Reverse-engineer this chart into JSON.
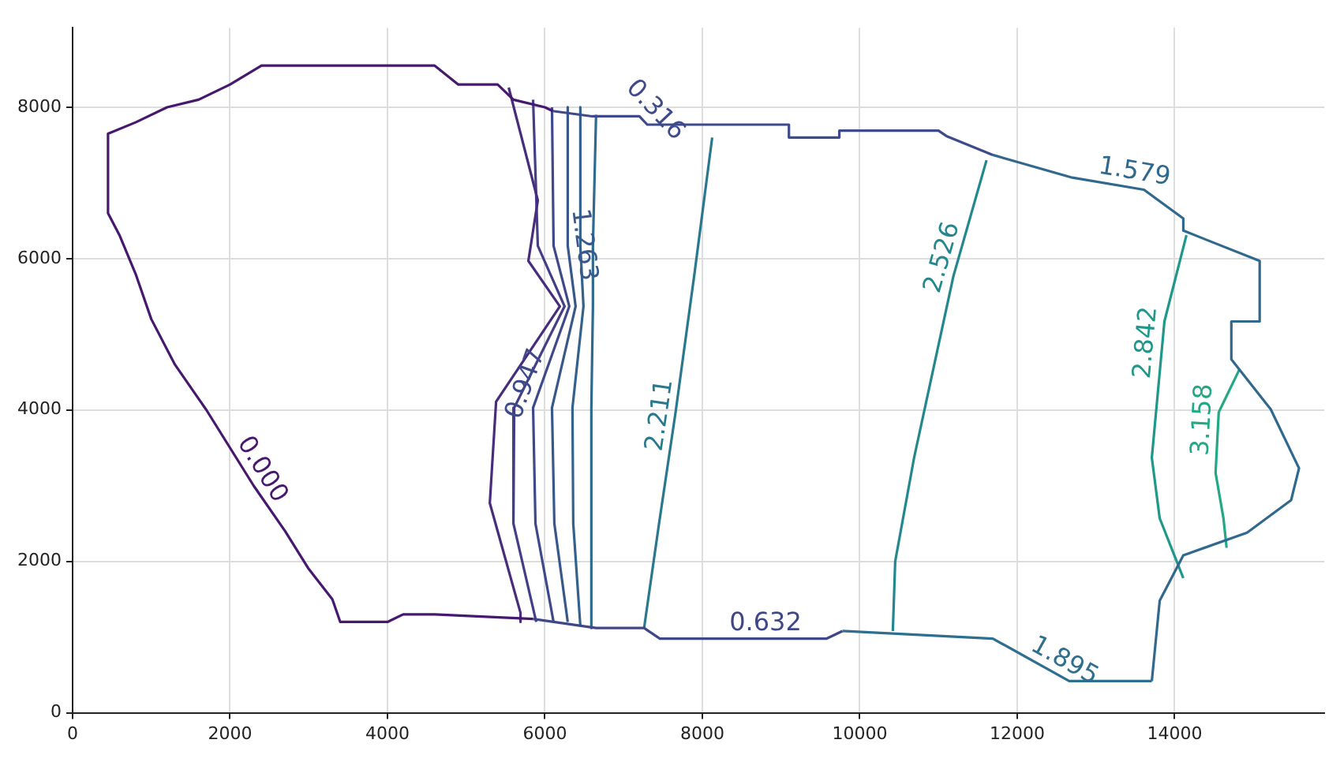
{
  "chart_data": {
    "type": "line",
    "xlim": [
      0,
      15900
    ],
    "ylim": [
      0,
      9050
    ],
    "xticks": [
      0,
      2000,
      4000,
      6000,
      8000,
      10000,
      12000,
      14000
    ],
    "yticks": [
      0,
      2000,
      4000,
      6000,
      8000
    ],
    "grid": true,
    "marker": "none",
    "series": [
      {
        "name": "0.000",
        "color": "#46186e",
        "x": [
          5850,
          4600,
          4200,
          4000,
          3400,
          3300,
          3000,
          2700,
          2300,
          2000,
          1700,
          1300,
          1000,
          800,
          600,
          450,
          450,
          800,
          1200,
          1600,
          2000,
          2400,
          4600,
          4900,
          5400,
          5600,
          6000,
          6100
        ],
        "values": [
          1240,
          1300,
          1300,
          1200,
          1200,
          1500,
          1900,
          2400,
          3000,
          3500,
          4000,
          4600,
          5200,
          5800,
          6300,
          6600,
          7650,
          7800,
          8000,
          8100,
          8300,
          8550,
          8550,
          8300,
          8300,
          8100,
          8000,
          7950
        ]
      },
      {
        "name": "0.316",
        "color": "#3e4a89",
        "x": [
          6100,
          6600,
          7200,
          7300,
          9100,
          9100,
          9740,
          9740,
          11000,
          11100,
          11690
        ],
        "values": [
          7950,
          7880,
          7880,
          7770,
          7770,
          7600,
          7600,
          7690,
          7690,
          7620,
          7370
        ]
      },
      {
        "name": "1.579",
        "color": "#31688e",
        "x": [
          11690,
          12700,
          13610,
          14110,
          14110,
          15080,
          15080,
          14720,
          14720,
          15220,
          15580,
          15480,
          14920,
          14110,
          13810,
          13710
        ],
        "values": [
          7370,
          7070,
          6910,
          6530,
          6370,
          5970,
          5170,
          5170,
          4670,
          4010,
          3230,
          2810,
          2380,
          2080,
          1480,
          420
        ]
      },
      {
        "name": "1.895",
        "color": "#2e6e8e",
        "x": [
          13710,
          12660,
          11690,
          9780
        ],
        "values": [
          420,
          420,
          980,
          1080
        ]
      },
      {
        "name": "0.632",
        "color": "#3f4788",
        "x": [
          9780,
          9580,
          7460,
          7260,
          6650,
          5850
        ],
        "values": [
          1080,
          980,
          980,
          1120,
          1120,
          1240
        ]
      },
      {
        "color": "#472d7b",
        "x": [
          5540,
          5910,
          5790,
          6190,
          5380,
          5300,
          5690,
          5690
        ],
        "values": [
          8260,
          6770,
          5970,
          5370,
          4110,
          2770,
          1320,
          1200
        ]
      },
      {
        "color": "#433e85",
        "x": [
          5850,
          5910,
          6250,
          5610,
          5600,
          5890
        ],
        "values": [
          8100,
          6170,
          5370,
          4030,
          2500,
          1200
        ]
      },
      {
        "name": "0.947",
        "color": "#3e4989",
        "x": [
          6090,
          6110,
          6310,
          5850,
          5880,
          6110
        ],
        "values": [
          8000,
          6170,
          5370,
          4030,
          2500,
          1200
        ]
      },
      {
        "name": "1.263",
        "color": "#38588c",
        "x": [
          6290,
          6290,
          6390,
          6090,
          6120,
          6290
        ],
        "values": [
          8000,
          6170,
          5370,
          4030,
          2500,
          1200
        ]
      },
      {
        "color": "#33628d",
        "x": [
          6450,
          6450,
          6490,
          6350,
          6360,
          6450
        ],
        "values": [
          8000,
          6170,
          5370,
          4030,
          2500,
          1150
        ]
      },
      {
        "color": "#2e6a8e",
        "x": [
          6650,
          6610,
          6610,
          6590,
          6590,
          6590
        ],
        "values": [
          7900,
          6170,
          5370,
          4030,
          2500,
          1120
        ]
      },
      {
        "name": "2.211",
        "color": "#2a788e",
        "x": [
          8125,
          7900,
          7660,
          7450,
          7260
        ],
        "values": [
          7600,
          5800,
          3970,
          2500,
          1120
        ]
      },
      {
        "name": "2.526",
        "color": "#23888e",
        "x": [
          11610,
          11190,
          10690,
          10450,
          10420
        ],
        "values": [
          7300,
          5770,
          3370,
          2000,
          1080
        ]
      },
      {
        "name": "2.842",
        "color": "#1f988b",
        "x": [
          14150,
          13870,
          13710,
          13810,
          14110
        ],
        "values": [
          6310,
          5170,
          3370,
          2570,
          1780
        ]
      },
      {
        "name": "3.158",
        "color": "#22a884",
        "x": [
          14820,
          14560,
          14520,
          14620,
          14660
        ],
        "values": [
          4530,
          3970,
          3170,
          2570,
          2180
        ]
      }
    ]
  }
}
